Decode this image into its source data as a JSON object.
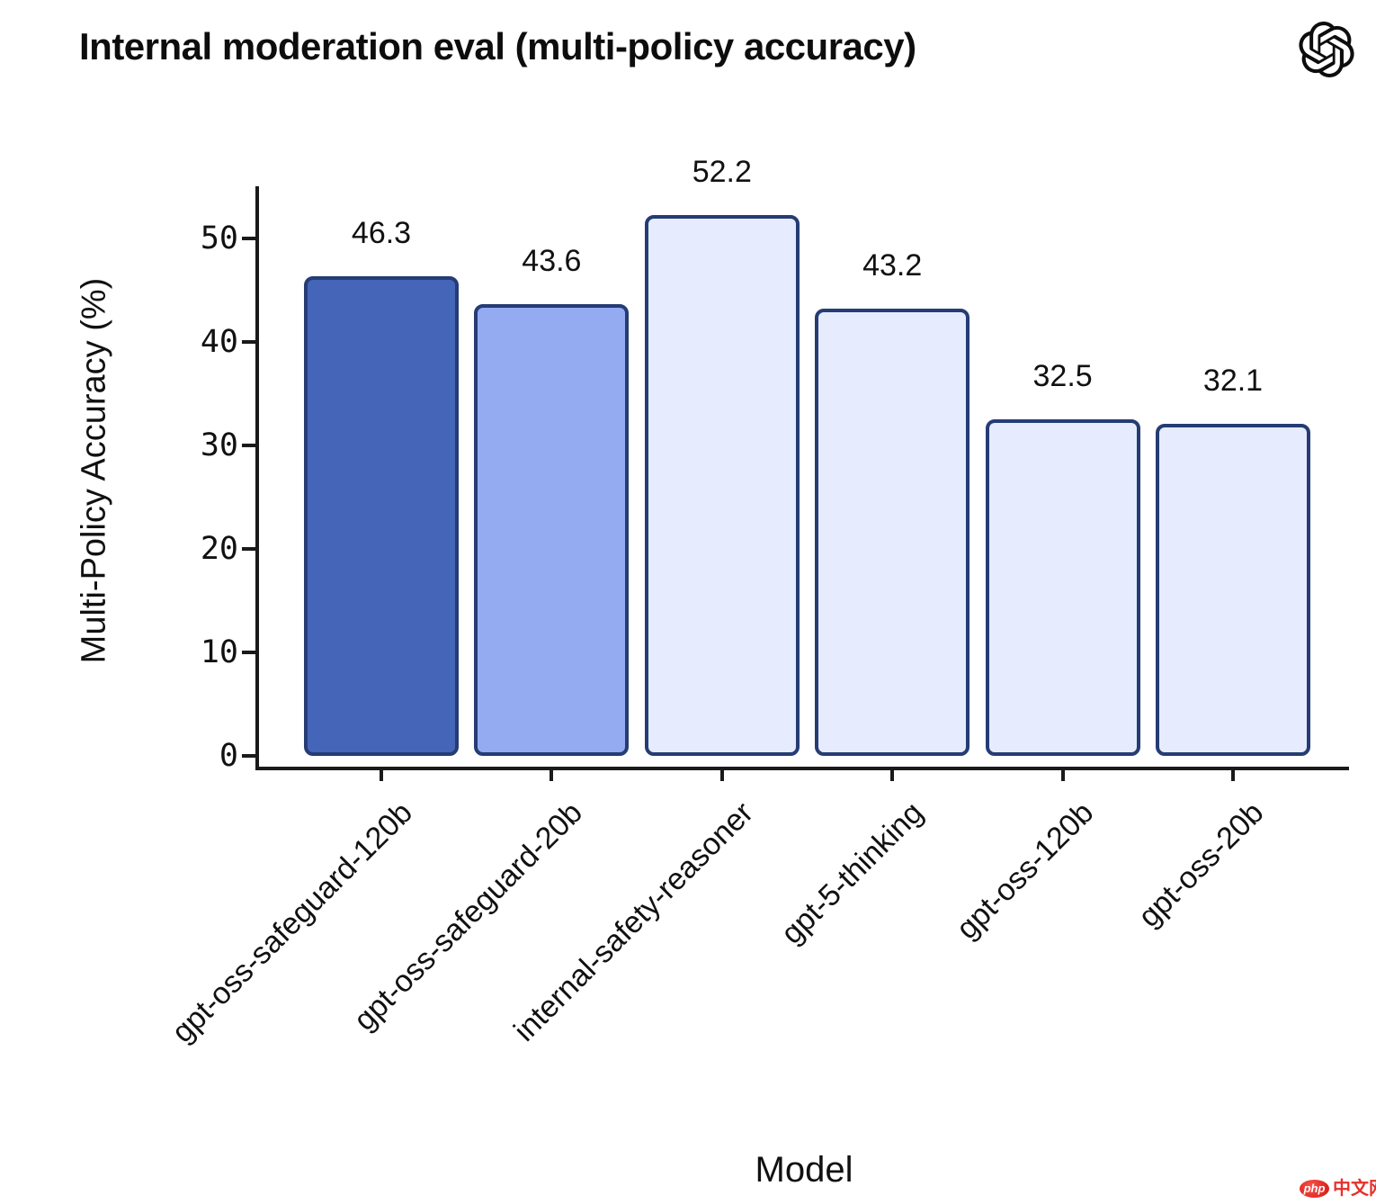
{
  "header": {
    "title": "Internal moderation eval (multi-policy accuracy)",
    "logo_icon": "openai-logo"
  },
  "chart_data": {
    "type": "bar",
    "title": "Internal moderation eval (multi-policy accuracy)",
    "xlabel": "Model",
    "ylabel": "Multi-Policy Accuracy (%)",
    "categories": [
      "gpt-oss-safeguard-120b",
      "gpt-oss-safeguard-20b",
      "internal-safety-reasoner",
      "gpt-5-thinking",
      "gpt-oss-120b",
      "gpt-oss-20b"
    ],
    "values": [
      46.3,
      43.6,
      52.2,
      43.2,
      32.5,
      32.1
    ],
    "value_labels": [
      "46.3",
      "43.6",
      "52.2",
      "43.2",
      "32.5",
      "32.1"
    ],
    "bar_colors": [
      "#4565b8",
      "#94abf2",
      "#e6ecfd",
      "#e6ecfd",
      "#e6ecfd",
      "#e6ecfd"
    ],
    "bar_edge_color": "#253c74",
    "yticks": [
      0,
      10,
      20,
      30,
      40,
      50
    ],
    "ylim": [
      0,
      55
    ],
    "grid": false,
    "legend": null,
    "text_color": "#111111",
    "axis_color": "#1a1a1a"
  },
  "watermark": {
    "badge": "php",
    "text": "中文网",
    "color": "#e8302a"
  }
}
